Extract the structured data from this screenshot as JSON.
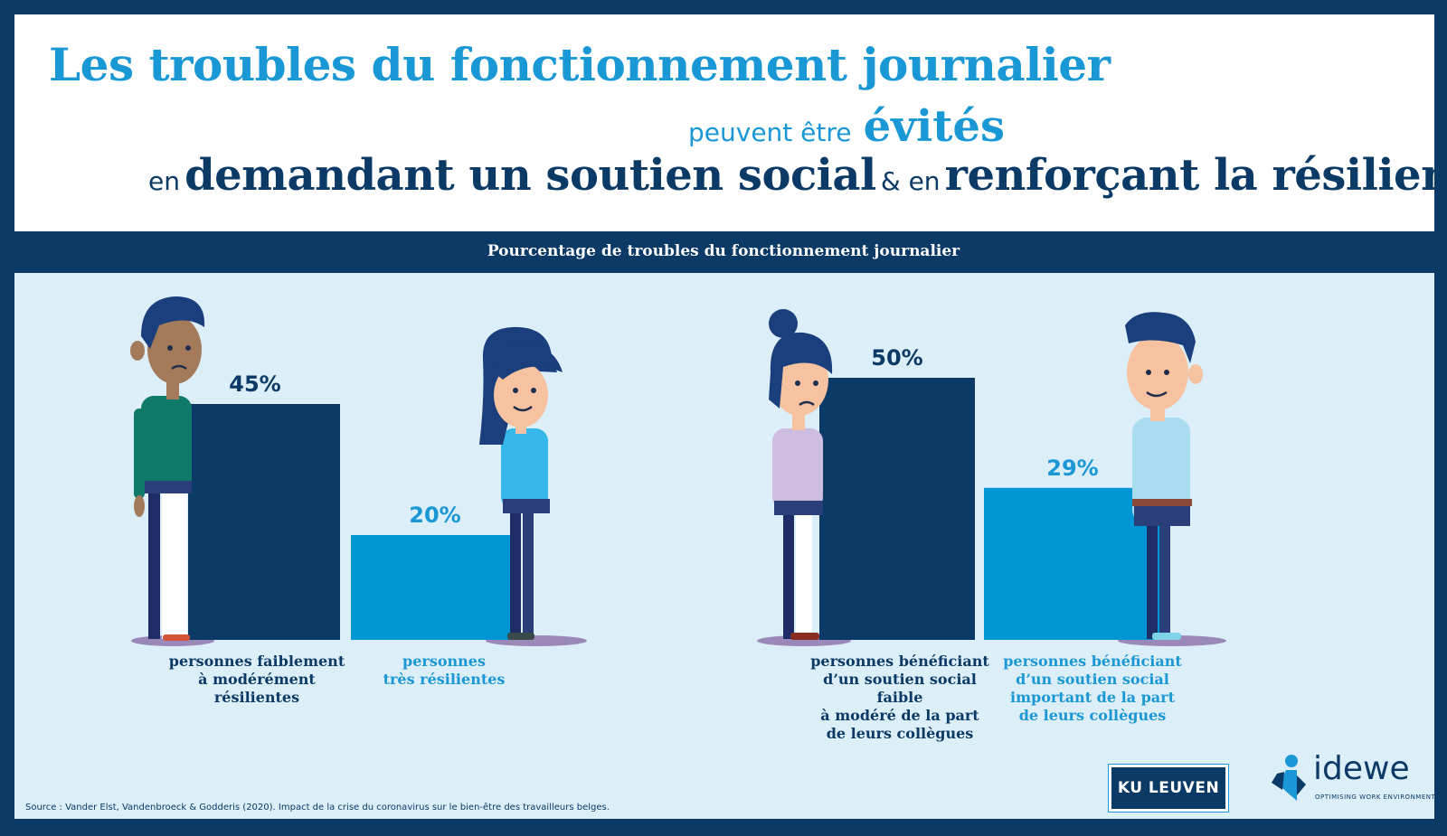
{
  "header": {
    "title_line1": "Les troubles du fonctionnement journalier",
    "line2_small": "peuvent être",
    "line2_big": "évités",
    "line3_small1": "en",
    "line3_big1": "demandant un soutien social",
    "line3_small2": "& en",
    "line3_big2": "renforçant la résilience."
  },
  "subtitle": "Pourcentage de troubles du fonctionnement journalier",
  "chart_data": {
    "type": "bar",
    "title": "Pourcentage de troubles du fonctionnement journalier",
    "ylim": [
      0,
      100
    ],
    "categories": [
      "personnes faiblement à modérément résilientes",
      "personnes très résilientes",
      "personnes bénéficiant d’un soutien social faible à modéré de la part de leurs collègues",
      "personnes bénéficiant d’un soutien social important de la part de leurs collègues"
    ],
    "values": [
      45,
      20,
      50,
      29
    ],
    "value_labels": [
      "45%",
      "20%",
      "50%",
      "29%"
    ],
    "bar_colors": [
      "#0b3a66",
      "#0096d6",
      "#0b3a66",
      "#0096d6"
    ],
    "label_lines": [
      [
        "personnes faiblement",
        "à modérément",
        "résilientes"
      ],
      [
        "personnes",
        "très résilientes"
      ],
      [
        "personnes bénéficiant",
        "d’un soutien social faible",
        "à modéré de la part",
        "de leurs collègues"
      ],
      [
        "personnes bénéficiant",
        "d’un soutien social",
        "important de la part",
        "de leurs collègues"
      ]
    ]
  },
  "source": "Source : Vander Elst, Vandenbroeck & Godderis (2020). Impact de la crise du coronavirus sur le bien-être des travailleurs belges.",
  "logos": {
    "kuleuven": "KU LEUVEN",
    "idewe": "idewe",
    "idewe_tagline": "OPTIMISING WORK ENVIRONMENTS"
  },
  "colors": {
    "dark_blue": "#0b3a66",
    "light_blue": "#0096d6",
    "title_blue": "#1a97d5",
    "panel_bg": "#dceef8"
  }
}
